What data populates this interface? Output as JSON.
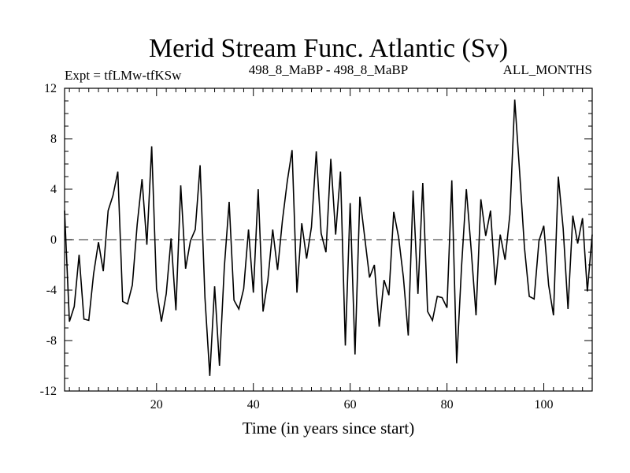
{
  "chart_data": {
    "type": "line",
    "title": "Merid Stream Func. Atlantic (Sv)",
    "header_left": "Expt = tfLMw-tfKSw",
    "header_center": "498_8_MaBP - 498_8_MaBP",
    "header_right": "ALL_MONTHS",
    "xlabel": "Time (in years since start)",
    "ylabel": "",
    "xlim": [
      1,
      110
    ],
    "ylim": [
      -12,
      12
    ],
    "x_ticks": [
      20,
      40,
      60,
      80,
      100
    ],
    "x_tick_labels": [
      "20",
      "40",
      "60",
      "80",
      "100"
    ],
    "y_ticks": [
      -12,
      -8,
      -4,
      0,
      4,
      8,
      12
    ],
    "y_tick_labels": [
      "-12",
      "-8",
      "-4",
      "0",
      "4",
      "8",
      "12"
    ],
    "zero_line": true,
    "colors": {
      "line": "#000000",
      "zero_line": "#555555",
      "axis": "#000000"
    },
    "series": [
      {
        "name": "Merid Stream Func. Atlantic",
        "x": [
          1,
          2,
          3,
          4,
          5,
          6,
          7,
          8,
          9,
          10,
          11,
          12,
          13,
          14,
          15,
          16,
          17,
          18,
          19,
          20,
          21,
          22,
          23,
          24,
          25,
          26,
          27,
          28,
          29,
          30,
          31,
          32,
          33,
          34,
          35,
          36,
          37,
          38,
          39,
          40,
          41,
          42,
          43,
          44,
          45,
          46,
          47,
          48,
          49,
          50,
          51,
          52,
          53,
          54,
          55,
          56,
          57,
          58,
          59,
          60,
          61,
          62,
          63,
          64,
          65,
          66,
          67,
          68,
          69,
          70,
          71,
          72,
          73,
          74,
          75,
          76,
          77,
          78,
          79,
          80,
          81,
          82,
          83,
          84,
          85,
          86,
          87,
          88,
          89,
          90,
          91,
          92,
          93,
          94,
          95,
          96,
          97,
          98,
          99,
          100,
          101,
          102,
          103,
          104,
          105,
          106,
          107,
          108,
          109,
          110
        ],
        "y": [
          2.3,
          -6.5,
          -5.3,
          -1.2,
          -6.3,
          -6.4,
          -2.7,
          -0.2,
          -2.5,
          2.3,
          3.5,
          5.4,
          -4.9,
          -5.1,
          -3.6,
          1.2,
          4.8,
          -0.4,
          7.4,
          -3.9,
          -6.5,
          -4.3,
          0.1,
          -5.6,
          4.3,
          -2.3,
          -0.1,
          0.8,
          5.9,
          -4.6,
          -10.8,
          -3.7,
          -10.0,
          -2.2,
          3.0,
          -4.8,
          -5.5,
          -3.9,
          0.8,
          -4.2,
          4.0,
          -5.7,
          -3.2,
          0.8,
          -2.4,
          1.5,
          4.6,
          7.1,
          -4.2,
          1.3,
          -1.5,
          1.0,
          7.0,
          0.5,
          -1.0,
          6.4,
          0.4,
          5.4,
          -8.4,
          2.9,
          -9.1,
          3.4,
          0.2,
          -3.0,
          -2.0,
          -6.9,
          -3.2,
          -4.4,
          2.2,
          0.2,
          -3.0,
          -7.6,
          3.9,
          -4.3,
          4.5,
          -5.7,
          -6.4,
          -4.5,
          -4.6,
          -5.4,
          4.7,
          -9.8,
          -2.2,
          4.0,
          -0.8,
          -6.0,
          3.2,
          0.3,
          2.3,
          -3.6,
          0.4,
          -1.6,
          2.0,
          11.1,
          5.4,
          -0.6,
          -4.5,
          -4.7,
          -0.1,
          1.1,
          -3.6,
          -6.0,
          5.0,
          0.9,
          -5.5,
          1.9,
          -0.3,
          1.7,
          -4.1,
          0.4
        ]
      }
    ]
  }
}
